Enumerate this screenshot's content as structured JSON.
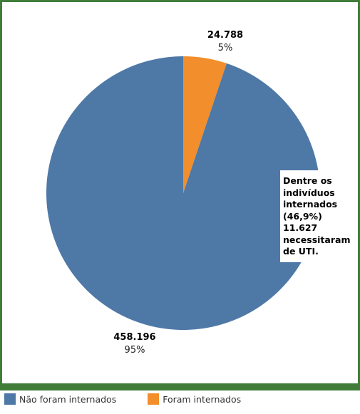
{
  "colors": {
    "frame": "#3f7d39",
    "series_a": "#4e79a7",
    "series_b": "#f28e2b"
  },
  "annotation": "Dentre os\nindivíduos\ninternados\n(46,9%)\n11.627\nnecessitaram\nde UTI.",
  "chart_data": {
    "type": "pie",
    "categories": [
      "Não foram internados",
      "Foram internados"
    ],
    "values": [
      458196,
      24788
    ],
    "value_labels": [
      "458.196",
      "24.788"
    ],
    "percent_labels": [
      "95%",
      "5%"
    ],
    "legend_position": "bottom-left"
  }
}
